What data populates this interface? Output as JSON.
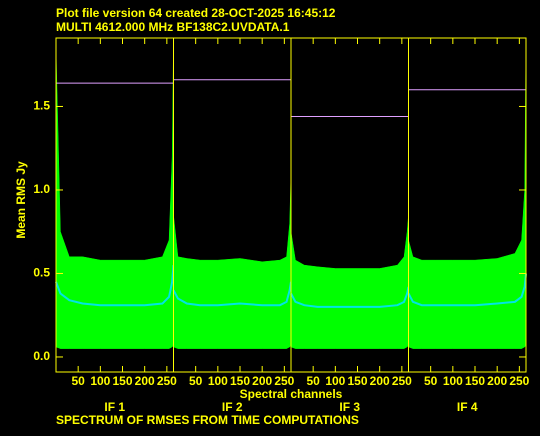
{
  "chart_data": {
    "type": "multi-panel-spectrum",
    "header": [
      "Plot file version 64  created 28-OCT-2025 16:45:12",
      "MULTI 4612.000 MHz  BF138C2.UVDATA.1"
    ],
    "ylabel": "Mean RMS Jy",
    "xlabel": "Spectral channels",
    "footer": "SPECTRUM OF RMSES FROM TIME COMPUTATIONS",
    "ylim": [
      -0.09,
      1.91
    ],
    "yticks": [
      {
        "value": 0,
        "label": "0.0"
      },
      0.5,
      {
        "value": 1,
        "label": "1.0"
      },
      1.5
    ],
    "xlim": [
      0,
      265
    ],
    "xticks": [
      50,
      100,
      150,
      200,
      250
    ],
    "band_color": "#00ff00",
    "mean_color": "#00e5e5",
    "line_color": "#e0a0ff",
    "axis_color": "#ffff00",
    "x": [
      0,
      10,
      30,
      60,
      100,
      150,
      200,
      240,
      255,
      262,
      265
    ],
    "panels": [
      {
        "label": "IF 1",
        "line": 1.64,
        "upper": [
          1.85,
          0.75,
          0.6,
          0.6,
          0.58,
          0.58,
          0.58,
          0.6,
          0.7,
          1.2,
          1.9
        ],
        "lower": [
          0.06,
          0.05,
          0.05,
          0.05,
          0.05,
          0.05,
          0.05,
          0.05,
          0.05,
          0.06,
          0.07
        ],
        "mean": [
          0.45,
          0.38,
          0.34,
          0.32,
          0.31,
          0.31,
          0.31,
          0.32,
          0.36,
          0.45,
          0.55
        ]
      },
      {
        "label": "IF 2",
        "line": 1.66,
        "upper": [
          0.85,
          0.6,
          0.59,
          0.58,
          0.58,
          0.59,
          0.57,
          0.58,
          0.6,
          0.8,
          1.1
        ],
        "lower": [
          0.06,
          0.05,
          0.05,
          0.05,
          0.05,
          0.05,
          0.05,
          0.05,
          0.05,
          0.06,
          0.07
        ],
        "mean": [
          0.4,
          0.35,
          0.32,
          0.31,
          0.31,
          0.32,
          0.31,
          0.31,
          0.33,
          0.4,
          0.45
        ]
      },
      {
        "label": "IF 3",
        "line": 1.44,
        "upper": [
          0.75,
          0.58,
          0.55,
          0.54,
          0.53,
          0.53,
          0.53,
          0.55,
          0.6,
          0.75,
          0.85
        ],
        "lower": [
          0.06,
          0.05,
          0.05,
          0.05,
          0.05,
          0.05,
          0.05,
          0.05,
          0.05,
          0.06,
          0.07
        ],
        "mean": [
          0.38,
          0.33,
          0.31,
          0.3,
          0.3,
          0.3,
          0.3,
          0.31,
          0.33,
          0.38,
          0.42
        ]
      },
      {
        "label": "IF 4",
        "line": 1.6,
        "upper": [
          0.7,
          0.6,
          0.58,
          0.58,
          0.58,
          0.58,
          0.59,
          0.62,
          0.7,
          1.0,
          1.9
        ],
        "lower": [
          0.06,
          0.05,
          0.05,
          0.05,
          0.05,
          0.05,
          0.05,
          0.05,
          0.05,
          0.06,
          0.07
        ],
        "mean": [
          0.38,
          0.33,
          0.31,
          0.31,
          0.31,
          0.31,
          0.32,
          0.33,
          0.36,
          0.42,
          0.5
        ]
      }
    ]
  }
}
